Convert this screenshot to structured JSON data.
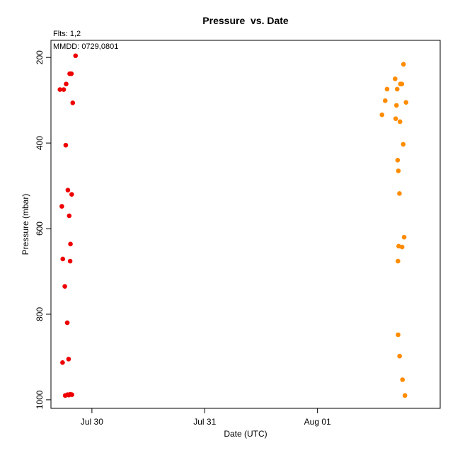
{
  "chart_data": {
    "type": "scatter",
    "title": "Pressure  vs. Date",
    "subtitle_flts": "Flts: 1,2",
    "subtitle_mmdd": "MMDD: 0729,0801",
    "xlabel": "Date (UTC)",
    "ylabel": "Pressure (mbar)",
    "y_reversed": true,
    "ylim": [
      1020,
      160
    ],
    "xlim": [
      "2012-07-29 15:17",
      "2012-08-02 02:06"
    ],
    "x_ticks": [
      {
        "label": "Jul 30",
        "value": "2012-07-30 00:00"
      },
      {
        "label": "Jul 31",
        "value": "2012-07-31 00:00"
      },
      {
        "label": "Aug 01",
        "value": "2012-08-01 00:00"
      }
    ],
    "y_ticks": [
      200,
      400,
      600,
      800,
      1000
    ],
    "grid": false,
    "legend": "none",
    "series": [
      {
        "color": "#ee0000",
        "points": [
          {
            "x": "2012-07-29 17:12",
            "y": 275
          },
          {
            "x": "2012-07-29 17:36",
            "y": 548
          },
          {
            "x": "2012-07-29 17:45",
            "y": 913
          },
          {
            "x": "2012-07-29 17:48",
            "y": 671
          },
          {
            "x": "2012-07-29 18:00",
            "y": 275
          },
          {
            "x": "2012-07-29 18:14",
            "y": 735
          },
          {
            "x": "2012-07-29 18:19",
            "y": 990
          },
          {
            "x": "2012-07-29 18:26",
            "y": 405
          },
          {
            "x": "2012-07-29 18:31",
            "y": 262
          },
          {
            "x": "2012-07-29 18:45",
            "y": 820
          },
          {
            "x": "2012-07-29 18:48",
            "y": 988
          },
          {
            "x": "2012-07-29 18:53",
            "y": 510
          },
          {
            "x": "2012-07-29 19:02",
            "y": 905
          },
          {
            "x": "2012-07-29 19:05",
            "y": 989
          },
          {
            "x": "2012-07-29 19:10",
            "y": 570
          },
          {
            "x": "2012-07-29 19:16",
            "y": 238
          },
          {
            "x": "2012-07-29 19:22",
            "y": 676
          },
          {
            "x": "2012-07-29 19:24",
            "y": 987
          },
          {
            "x": "2012-07-29 19:26",
            "y": 636
          },
          {
            "x": "2012-07-29 19:38",
            "y": 238
          },
          {
            "x": "2012-07-29 19:42",
            "y": 520
          },
          {
            "x": "2012-07-29 19:45",
            "y": 988
          },
          {
            "x": "2012-07-29 19:55",
            "y": 306
          },
          {
            "x": "2012-07-29 20:31",
            "y": 196
          }
        ]
      },
      {
        "color": "#ff8c00",
        "points": [
          {
            "x": "2012-08-01 13:43",
            "y": 334
          },
          {
            "x": "2012-08-01 14:24",
            "y": 301
          },
          {
            "x": "2012-08-01 14:48",
            "y": 274
          },
          {
            "x": "2012-08-01 16:31",
            "y": 250
          },
          {
            "x": "2012-08-01 16:38",
            "y": 343
          },
          {
            "x": "2012-08-01 16:48",
            "y": 312
          },
          {
            "x": "2012-08-01 16:57",
            "y": 274
          },
          {
            "x": "2012-08-01 17:03",
            "y": 440
          },
          {
            "x": "2012-08-01 17:07",
            "y": 676
          },
          {
            "x": "2012-08-01 17:09",
            "y": 848
          },
          {
            "x": "2012-08-01 17:12",
            "y": 465
          },
          {
            "x": "2012-08-01 17:16",
            "y": 641
          },
          {
            "x": "2012-08-01 17:26",
            "y": 518
          },
          {
            "x": "2012-08-01 17:28",
            "y": 898
          },
          {
            "x": "2012-08-01 17:33",
            "y": 350
          },
          {
            "x": "2012-08-01 17:38",
            "y": 262
          },
          {
            "x": "2012-08-01 17:57",
            "y": 262
          },
          {
            "x": "2012-08-01 18:00",
            "y": 643
          },
          {
            "x": "2012-08-01 18:05",
            "y": 953
          },
          {
            "x": "2012-08-01 18:14",
            "y": 403
          },
          {
            "x": "2012-08-01 18:18",
            "y": 216
          },
          {
            "x": "2012-08-01 18:26",
            "y": 620
          },
          {
            "x": "2012-08-01 18:36",
            "y": 990
          },
          {
            "x": "2012-08-01 18:50",
            "y": 305
          }
        ]
      }
    ]
  }
}
